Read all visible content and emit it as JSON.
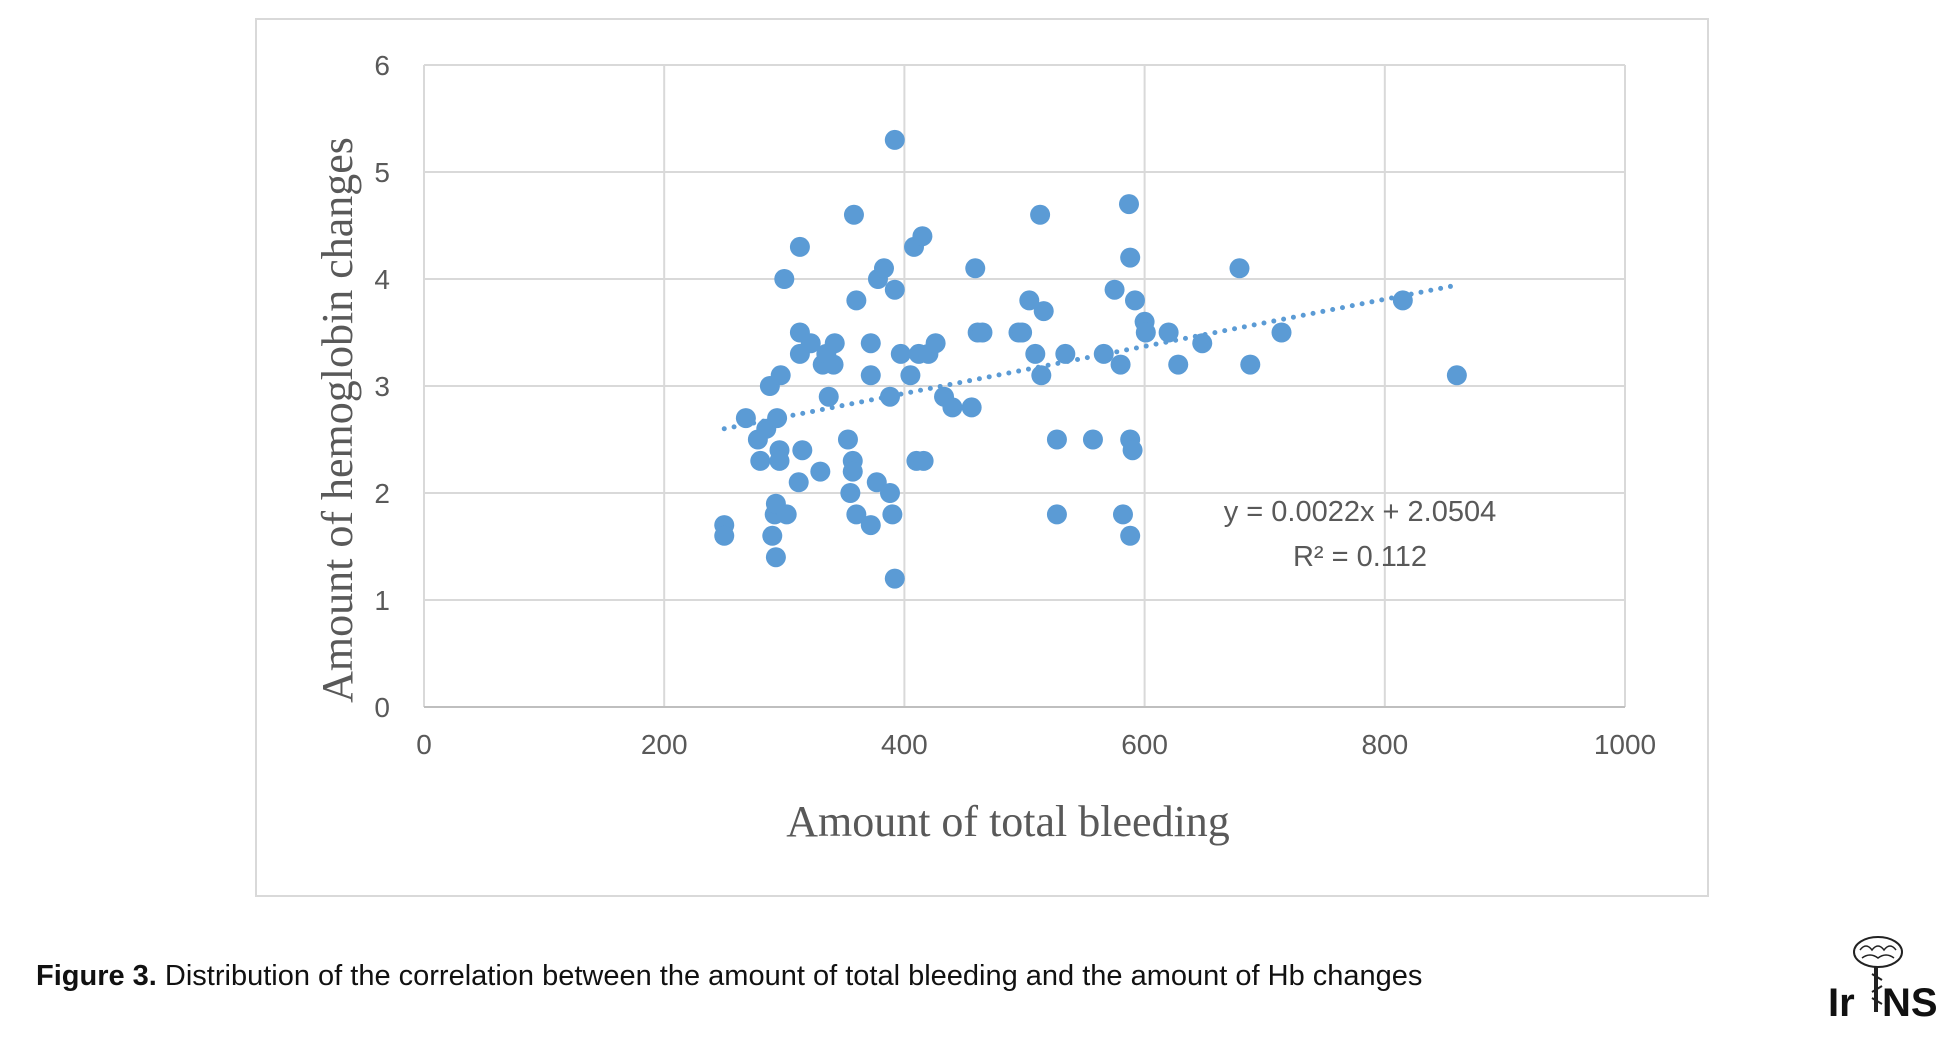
{
  "chart_data": {
    "type": "scatter",
    "xlabel": "Amount of total bleeding",
    "ylabel": "Amount of hemoglobin changes",
    "xlim": [
      0,
      1000
    ],
    "ylim": [
      0,
      6
    ],
    "x_ticks": [
      "0",
      "200",
      "400",
      "600",
      "800",
      "1000"
    ],
    "y_ticks": [
      "0",
      "1",
      "2",
      "3",
      "4",
      "5",
      "6"
    ],
    "grid": true,
    "marker_color": "#5B9BD5",
    "trendline": {
      "type": "linear",
      "slope": 0.0022,
      "intercept": 2.0504,
      "x_range": [
        250,
        860
      ],
      "style": "dotted",
      "equation": "y = 0.0022x + 2.0504",
      "r_squared": "R² = 0.112"
    },
    "points": [
      [
        250,
        1.7
      ],
      [
        250,
        1.6
      ],
      [
        268,
        2.7
      ],
      [
        278,
        2.5
      ],
      [
        280,
        2.3
      ],
      [
        285,
        2.6
      ],
      [
        288,
        3.0
      ],
      [
        290,
        1.6
      ],
      [
        292,
        1.8
      ],
      [
        293,
        1.4
      ],
      [
        293,
        1.9
      ],
      [
        294,
        2.7
      ],
      [
        296,
        2.4
      ],
      [
        296,
        2.3
      ],
      [
        297,
        3.1
      ],
      [
        300,
        4.0
      ],
      [
        302,
        1.8
      ],
      [
        312,
        2.1
      ],
      [
        313,
        3.3
      ],
      [
        313,
        3.5
      ],
      [
        313,
        4.3
      ],
      [
        315,
        2.4
      ],
      [
        322,
        3.4
      ],
      [
        330,
        2.2
      ],
      [
        332,
        3.2
      ],
      [
        335,
        3.3
      ],
      [
        337,
        2.9
      ],
      [
        341,
        3.2
      ],
      [
        342,
        3.4
      ],
      [
        353,
        2.5
      ],
      [
        355,
        2.0
      ],
      [
        357,
        2.3
      ],
      [
        357,
        2.2
      ],
      [
        358,
        4.6
      ],
      [
        360,
        1.8
      ],
      [
        360,
        3.8
      ],
      [
        372,
        3.1
      ],
      [
        372,
        3.4
      ],
      [
        372,
        1.7
      ],
      [
        377,
        2.1
      ],
      [
        378,
        4.0
      ],
      [
        383,
        4.1
      ],
      [
        388,
        2.9
      ],
      [
        388,
        2.0
      ],
      [
        390,
        1.8
      ],
      [
        392,
        1.2
      ],
      [
        392,
        3.9
      ],
      [
        392,
        5.3
      ],
      [
        397,
        3.3
      ],
      [
        405,
        3.1
      ],
      [
        408,
        4.3
      ],
      [
        410,
        2.3
      ],
      [
        412,
        3.3
      ],
      [
        415,
        4.4
      ],
      [
        416,
        2.3
      ],
      [
        420,
        3.3
      ],
      [
        426,
        3.4
      ],
      [
        433,
        2.9
      ],
      [
        440,
        2.8
      ],
      [
        456,
        2.8
      ],
      [
        459,
        4.1
      ],
      [
        461,
        3.5
      ],
      [
        465,
        3.5
      ],
      [
        495,
        3.5
      ],
      [
        498,
        3.5
      ],
      [
        504,
        3.8
      ],
      [
        509,
        3.3
      ],
      [
        513,
        4.6
      ],
      [
        514,
        3.1
      ],
      [
        516,
        3.7
      ],
      [
        527,
        2.5
      ],
      [
        527,
        1.8
      ],
      [
        534,
        3.3
      ],
      [
        557,
        2.5
      ],
      [
        566,
        3.3
      ],
      [
        575,
        3.9
      ],
      [
        580,
        3.2
      ],
      [
        582,
        1.8
      ],
      [
        587,
        4.7
      ],
      [
        588,
        2.5
      ],
      [
        588,
        1.6
      ],
      [
        588,
        4.2
      ],
      [
        590,
        2.4
      ],
      [
        592,
        3.8
      ],
      [
        600,
        3.6
      ],
      [
        601,
        3.5
      ],
      [
        620,
        3.5
      ],
      [
        628,
        3.2
      ],
      [
        648,
        3.4
      ],
      [
        679,
        4.1
      ],
      [
        688,
        3.2
      ],
      [
        714,
        3.5
      ],
      [
        815,
        3.8
      ],
      [
        860,
        3.1
      ]
    ]
  },
  "caption": {
    "label": "Figure 3.",
    "text": " Distribution of the correlation between the amount of total bleeding and the amount of Hb changes"
  },
  "logo": {
    "text": "IrJNS"
  }
}
